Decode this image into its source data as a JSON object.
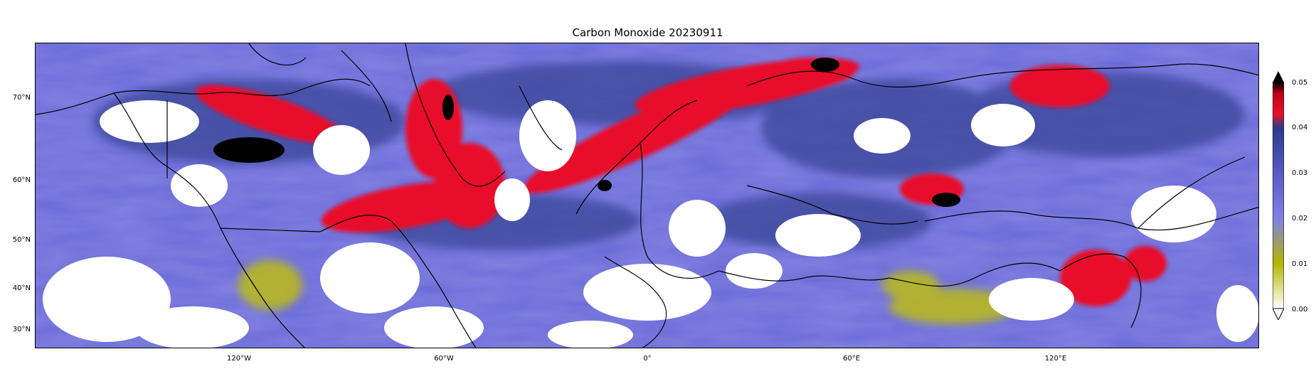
{
  "title": "Carbon Monoxide 20230911",
  "latitude_ticks": [
    "70°N",
    "60°N",
    "50°N",
    "40°N",
    "30°N"
  ],
  "longitude_ticks": [
    "120°W",
    "60°W",
    "0°",
    "60°E",
    "120°E"
  ],
  "colorbar": {
    "ticks": [
      "0.05",
      "0.04",
      "0.03",
      "0.02",
      "0.01",
      "0.00"
    ],
    "min": 0.0,
    "max": 0.05,
    "extend": "both",
    "colors": [
      "#ffffff",
      "#b5b500",
      "#7070e0",
      "#2a3a8a",
      "#e8102a",
      "#000000"
    ]
  },
  "map": {
    "ocean_land_color": "#6a6ad8",
    "cloud_color": "#ffffff",
    "high_co_color": "#e8102a",
    "low_co_color": "#b8b820"
  }
}
